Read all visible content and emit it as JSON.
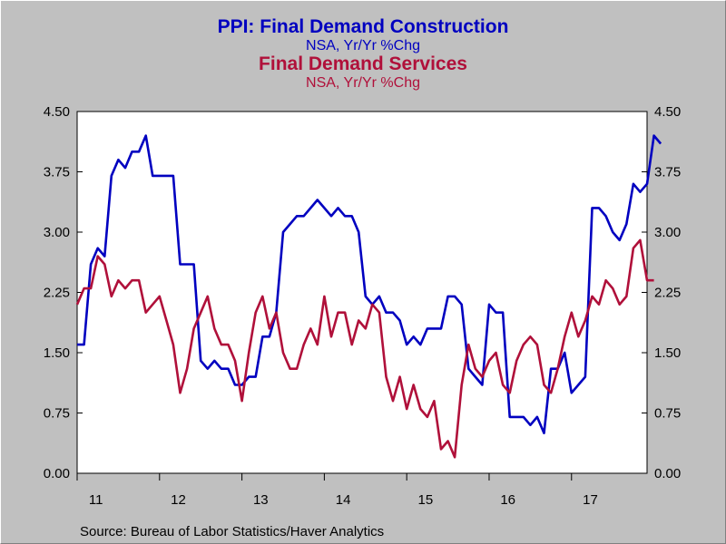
{
  "titles": {
    "series1_title": "PPI: Final Demand Construction",
    "series1_sub": "NSA, Yr/Yr %Chg",
    "series2_title": "Final Demand Services",
    "series2_sub": "NSA, Yr/Yr %Chg"
  },
  "source": "Source:  Bureau of Labor Statistics/Haver Analytics",
  "colors": {
    "series1": "#0000c0",
    "series2": "#b0103a",
    "plot_bg": "#ffffff",
    "page_bg": "#c0c0c0"
  },
  "chart_data": {
    "type": "line",
    "x_start": "2011-01",
    "x_labels": [
      "11",
      "12",
      "13",
      "14",
      "15",
      "16",
      "17"
    ],
    "ylim": [
      0,
      4.5
    ],
    "y_ticks": [
      "0.00",
      "0.75",
      "1.50",
      "2.25",
      "3.00",
      "3.75",
      "4.50"
    ],
    "y_tick_values": [
      0,
      0.75,
      1.5,
      2.25,
      3.0,
      3.75,
      4.5
    ],
    "dual_axis": true,
    "grid": false,
    "series": [
      {
        "name": "PPI: Final Demand Construction",
        "values": [
          1.6,
          1.6,
          2.6,
          2.8,
          2.7,
          3.7,
          3.9,
          3.8,
          4.0,
          4.0,
          4.2,
          3.7,
          3.7,
          3.7,
          3.7,
          2.6,
          2.6,
          2.6,
          1.4,
          1.3,
          1.4,
          1.3,
          1.3,
          1.1,
          1.1,
          1.2,
          1.2,
          1.7,
          1.7,
          2.0,
          3.0,
          3.1,
          3.2,
          3.2,
          3.3,
          3.4,
          3.3,
          3.2,
          3.3,
          3.2,
          3.2,
          3.0,
          2.2,
          2.1,
          2.2,
          2.0,
          2.0,
          1.9,
          1.6,
          1.7,
          1.6,
          1.8,
          1.8,
          1.8,
          2.2,
          2.2,
          2.1,
          1.3,
          1.2,
          1.1,
          2.1,
          2.0,
          2.0,
          0.7,
          0.7,
          0.7,
          0.6,
          0.7,
          0.5,
          1.3,
          1.3,
          1.5,
          1.0,
          1.1,
          1.2,
          3.3,
          3.3,
          3.2,
          3.0,
          2.9,
          3.1,
          3.6,
          3.5,
          3.6,
          4.2,
          4.1
        ]
      },
      {
        "name": "Final Demand Services",
        "values": [
          2.1,
          2.3,
          2.3,
          2.7,
          2.6,
          2.2,
          2.4,
          2.3,
          2.4,
          2.4,
          2.0,
          2.1,
          2.2,
          1.9,
          1.6,
          1.0,
          1.3,
          1.8,
          2.0,
          2.2,
          1.8,
          1.6,
          1.6,
          1.4,
          0.9,
          1.5,
          2.0,
          2.2,
          1.8,
          2.0,
          1.5,
          1.3,
          1.3,
          1.6,
          1.8,
          1.6,
          2.2,
          1.7,
          2.0,
          2.0,
          1.6,
          1.9,
          1.8,
          2.1,
          2.0,
          1.2,
          0.9,
          1.2,
          0.8,
          1.1,
          0.8,
          0.7,
          0.9,
          0.3,
          0.4,
          0.2,
          1.1,
          1.6,
          1.3,
          1.2,
          1.4,
          1.5,
          1.1,
          1.0,
          1.4,
          1.6,
          1.7,
          1.6,
          1.1,
          1.0,
          1.3,
          1.7,
          2.0,
          1.7,
          1.9,
          2.2,
          2.1,
          2.4,
          2.3,
          2.1,
          2.2,
          2.8,
          2.9,
          2.4,
          2.4
        ]
      }
    ]
  }
}
